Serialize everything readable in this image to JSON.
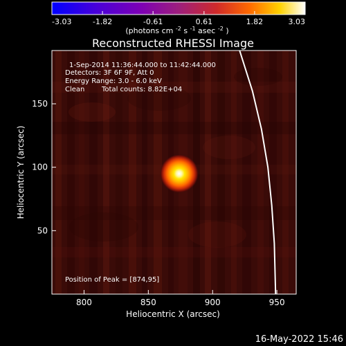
{
  "chart_data": {
    "type": "heatmap",
    "title": "Reconstructed RHESSI Image",
    "xlabel": "Heliocentric X (arcsec)",
    "ylabel": "Heliocentric Y (arcsec)",
    "xlim": [
      775,
      965
    ],
    "ylim": [
      0,
      192
    ],
    "xticks": [
      "800",
      "850",
      "900",
      "950"
    ],
    "yticks": [
      "50",
      "100",
      "150"
    ],
    "grid": false,
    "colorbar": {
      "placement": "top",
      "ticks": [
        "-3.03",
        "-1.82",
        "-0.61",
        "0.61",
        "1.82",
        "3.03"
      ],
      "range": [
        -3.03,
        3.03
      ],
      "label_prefix": "(photons cm",
      "label_exp1": "-2",
      "label_mid": " s",
      "label_exp2": "-1",
      "label_mid2": " asec",
      "label_exp3": "-2",
      "label_suffix": ")"
    },
    "annotations": {
      "time": "1-Sep-2014 11:36:44.000 to 11:42:44.000",
      "detectors": "Detectors: 3F 6F 9F, Att 0",
      "energy": "Energy Range: 3.0 - 6.0 keV",
      "clean_label": "Clean",
      "counts": "Total counts: 8.82E+04",
      "peak": "Position of Peak = [874,95]"
    },
    "source": {
      "peak_position": [
        874,
        95
      ],
      "peak_value": 3.03,
      "sigma_arcsec": 7,
      "background_value": 0.25
    },
    "limb": {
      "points": [
        [
          921,
          192
        ],
        [
          931,
          160
        ],
        [
          938,
          130
        ],
        [
          943,
          100
        ],
        [
          946,
          70
        ],
        [
          948,
          40
        ],
        [
          949,
          0
        ]
      ]
    }
  },
  "footer": {
    "timestamp": "16-May-2022 15:46"
  }
}
